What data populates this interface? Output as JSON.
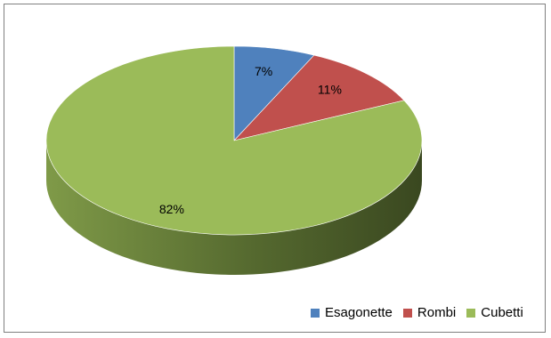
{
  "chart_data": {
    "type": "pie",
    "categories": [
      "Esagonette",
      "Rombi",
      "Cubetti"
    ],
    "values": [
      7,
      11,
      82
    ],
    "data_labels": [
      "7%",
      "11%",
      "82%"
    ],
    "colors": [
      "#4f81bd",
      "#c0504d",
      "#9bbb59"
    ],
    "side_colors": [
      "#2c4a6e",
      "#7a2f2c",
      "#4a5c28"
    ],
    "three_d": true,
    "start_angle_deg": 0,
    "direction": "clockwise",
    "legend_position": "bottom-right",
    "title": ""
  }
}
